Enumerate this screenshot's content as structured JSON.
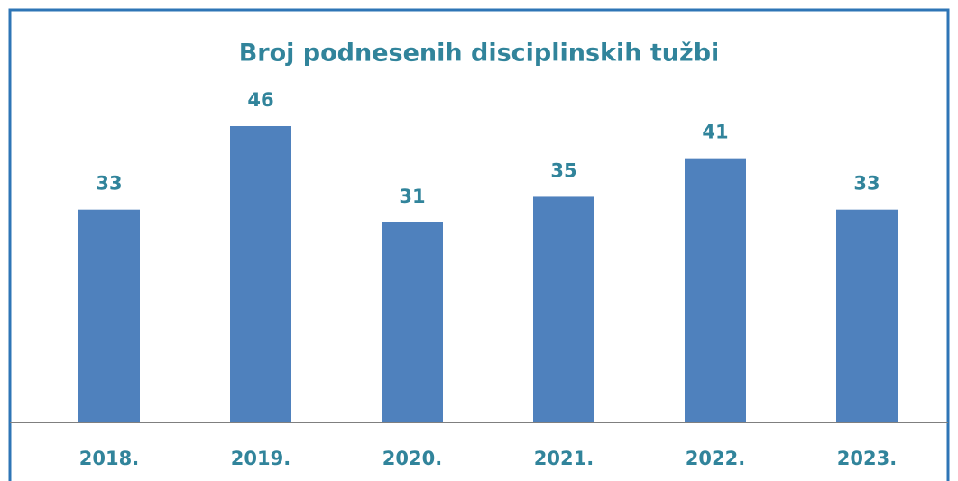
{
  "chart_data": {
    "type": "bar",
    "title": "Broj podnesenih disciplinskih tužbi",
    "categories": [
      "2018.",
      "2019.",
      "2020.",
      "2021.",
      "2022.",
      "2023."
    ],
    "values": [
      33,
      46,
      31,
      35,
      41,
      33
    ],
    "color": "#4f81bd"
  }
}
